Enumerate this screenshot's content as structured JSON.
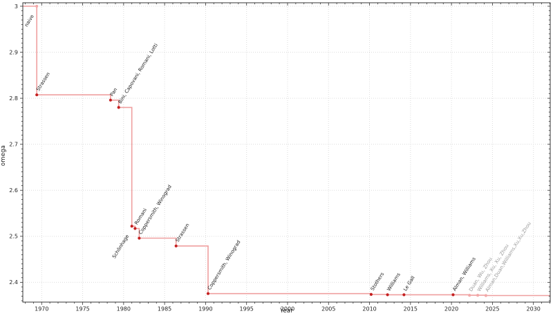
{
  "chart_data": {
    "type": "line",
    "subtype": "step-post",
    "title": "",
    "xlabel": "Year",
    "ylabel": "omega",
    "xlim": [
      1967.7,
      2032.05
    ],
    "ylim": [
      2.357,
      3.0075
    ],
    "grid": true,
    "legend": false,
    "x_major_ticks": [
      "1970",
      "1975",
      "1980",
      "1985",
      "1990",
      "1995",
      "2000",
      "2005",
      "2010",
      "2015",
      "2020",
      "2025",
      "2030"
    ],
    "x_minor_step": 1,
    "y_major_ticks": [
      "2.4",
      "2.5",
      "2.6",
      "2.7",
      "2.8",
      "2.9",
      "3"
    ],
    "y_minor_step": 0.01,
    "points": [
      {
        "year": 1969.4,
        "omega": 3.0,
        "label": "naive",
        "marker": "light",
        "label_color": "black",
        "label_side": "below"
      },
      {
        "year": 1969.4,
        "omega": 2.8074,
        "label": "Strassen",
        "marker": "dark",
        "label_color": "black",
        "label_side": "above"
      },
      {
        "year": 1978.4,
        "omega": 2.796,
        "label": "Pan",
        "marker": "dark",
        "label_color": "black",
        "label_side": "above"
      },
      {
        "year": 1979.4,
        "omega": 2.78,
        "label": "Bini, Capovani, Romani, Lotti",
        "marker": "dark",
        "label_color": "black",
        "label_side": "above"
      },
      {
        "year": 1981.0,
        "omega": 2.522,
        "label": "Schönhage",
        "marker": "dark",
        "label_color": "black",
        "label_side": "below"
      },
      {
        "year": 1981.4,
        "omega": 2.517,
        "label": "Romani",
        "marker": "dark",
        "label_color": "black",
        "label_side": "above"
      },
      {
        "year": 1981.9,
        "omega": 2.496,
        "label": "Coppersmith, Winograd",
        "marker": "dark",
        "label_color": "black",
        "label_side": "above"
      },
      {
        "year": 1986.4,
        "omega": 2.479,
        "label": "Strassen",
        "marker": "dark",
        "label_color": "black",
        "label_side": "above"
      },
      {
        "year": 1990.3,
        "omega": 2.3755,
        "label": "Coppersmith, Winograd",
        "marker": "dark",
        "label_color": "black",
        "label_side": "above"
      },
      {
        "year": 2010.2,
        "omega": 2.3737,
        "label": "Stothers",
        "marker": "dark",
        "label_color": "black",
        "label_side": "above"
      },
      {
        "year": 2012.2,
        "omega": 2.3729,
        "label": "Williams",
        "marker": "dark",
        "label_color": "black",
        "label_side": "above"
      },
      {
        "year": 2014.2,
        "omega": 2.37287,
        "label": "Le Gall",
        "marker": "dark",
        "label_color": "black",
        "label_side": "above"
      },
      {
        "year": 2020.2,
        "omega": 2.37286,
        "label": "Alman, Williams",
        "marker": "dark",
        "label_color": "black",
        "label_side": "above"
      },
      {
        "year": 2022.2,
        "omega": 2.37188,
        "label": "Duan, Wu, Zhou",
        "marker": "light",
        "label_color": "gray",
        "label_side": "above"
      },
      {
        "year": 2023.2,
        "omega": 2.37187,
        "label": "Williams, Xu, Xu, Zhou",
        "marker": "light",
        "label_color": "gray",
        "label_side": "above"
      },
      {
        "year": 2024.2,
        "omega": 2.37134,
        "label": "Alman,Duan,Williams,Xu,Xu,Zhou",
        "marker": "light",
        "label_color": "gray",
        "label_side": "above"
      }
    ],
    "colors": {
      "line": "#ef9f9f",
      "marker_dark": "#c42020",
      "marker_light": "#f2a8a8",
      "label": "#1a1a1a",
      "label_gray": "#9a9a9a",
      "grid": "#dcdcdc",
      "axis": "#333333",
      "tick_text": "#222222"
    }
  }
}
